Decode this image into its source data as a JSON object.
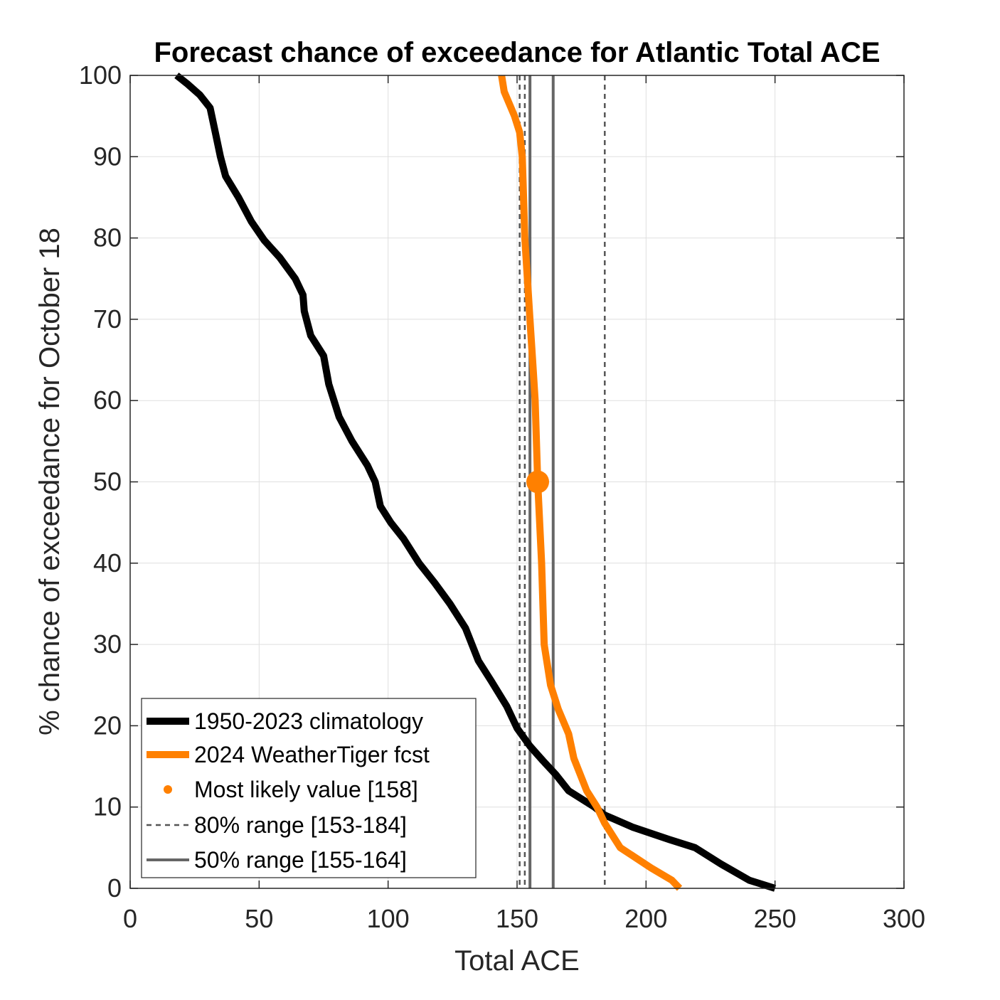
{
  "chart_data": {
    "type": "line",
    "title": "Forecast chance of exceedance for Atlantic Total ACE",
    "xlabel": "Total ACE",
    "ylabel": "% chance of exceedance for October 18",
    "xlim": [
      0,
      300
    ],
    "ylim": [
      0,
      100
    ],
    "xticks": [
      0,
      50,
      100,
      150,
      200,
      250,
      300
    ],
    "yticks": [
      0,
      10,
      20,
      30,
      40,
      50,
      60,
      70,
      80,
      90,
      100
    ],
    "grid": true,
    "legend_position": "bottom-left",
    "series": [
      {
        "name": "1950-2023 climatology",
        "color": "#000000",
        "points": [
          [
            18,
            100
          ],
          [
            22,
            99
          ],
          [
            27,
            97.6
          ],
          [
            31,
            96
          ],
          [
            33,
            93
          ],
          [
            35,
            90
          ],
          [
            37,
            87.6
          ],
          [
            42,
            85
          ],
          [
            47,
            82
          ],
          [
            52,
            79.7
          ],
          [
            58,
            77.6
          ],
          [
            64,
            75
          ],
          [
            67,
            73
          ],
          [
            67.5,
            71
          ],
          [
            70,
            68
          ],
          [
            75,
            65.5
          ],
          [
            77,
            62
          ],
          [
            81,
            58
          ],
          [
            86,
            55
          ],
          [
            92,
            52
          ],
          [
            95,
            50
          ],
          [
            97,
            47
          ],
          [
            101,
            45
          ],
          [
            106,
            43
          ],
          [
            112,
            40
          ],
          [
            118,
            37.6
          ],
          [
            124,
            35
          ],
          [
            130,
            32
          ],
          [
            135,
            28
          ],
          [
            140,
            25.5
          ],
          [
            146,
            22.4
          ],
          [
            150,
            19.7
          ],
          [
            155,
            17.5
          ],
          [
            160,
            15.7
          ],
          [
            165,
            14
          ],
          [
            170,
            12
          ],
          [
            180,
            10
          ],
          [
            184,
            9
          ],
          [
            187,
            8.6
          ],
          [
            195,
            7.5
          ],
          [
            209,
            6
          ],
          [
            219,
            5
          ],
          [
            229,
            3
          ],
          [
            240,
            1
          ],
          [
            250,
            0
          ]
        ]
      },
      {
        "name": "2024 WeatherTiger fcst",
        "color": "#ff8000",
        "points": [
          [
            144,
            100
          ],
          [
            145,
            98
          ],
          [
            149,
            95
          ],
          [
            151,
            93
          ],
          [
            152,
            90
          ],
          [
            153,
            80
          ],
          [
            155,
            70
          ],
          [
            156,
            65
          ],
          [
            157,
            60
          ],
          [
            158,
            50
          ],
          [
            159.5,
            40
          ],
          [
            160.5,
            30
          ],
          [
            162,
            27
          ],
          [
            163,
            25
          ],
          [
            166,
            22
          ],
          [
            170,
            19
          ],
          [
            172,
            16
          ],
          [
            177,
            12
          ],
          [
            181,
            10
          ],
          [
            184,
            8
          ],
          [
            190,
            5
          ],
          [
            202,
            2.5
          ],
          [
            210,
            1
          ],
          [
            213,
            0
          ]
        ]
      }
    ],
    "most_likely": {
      "label": "Most likely value [158]",
      "x": 158,
      "y": 50,
      "color": "#ff8000"
    },
    "ranges": [
      {
        "label": "80% range [153-184]",
        "style": "dashed",
        "values": [
          153,
          184
        ],
        "color": "#555555"
      },
      {
        "label": "50% range [155-164]",
        "style": "solid",
        "values": [
          155,
          164
        ],
        "color": "#666666"
      }
    ],
    "extra_dashed_x": [
      151
    ]
  }
}
